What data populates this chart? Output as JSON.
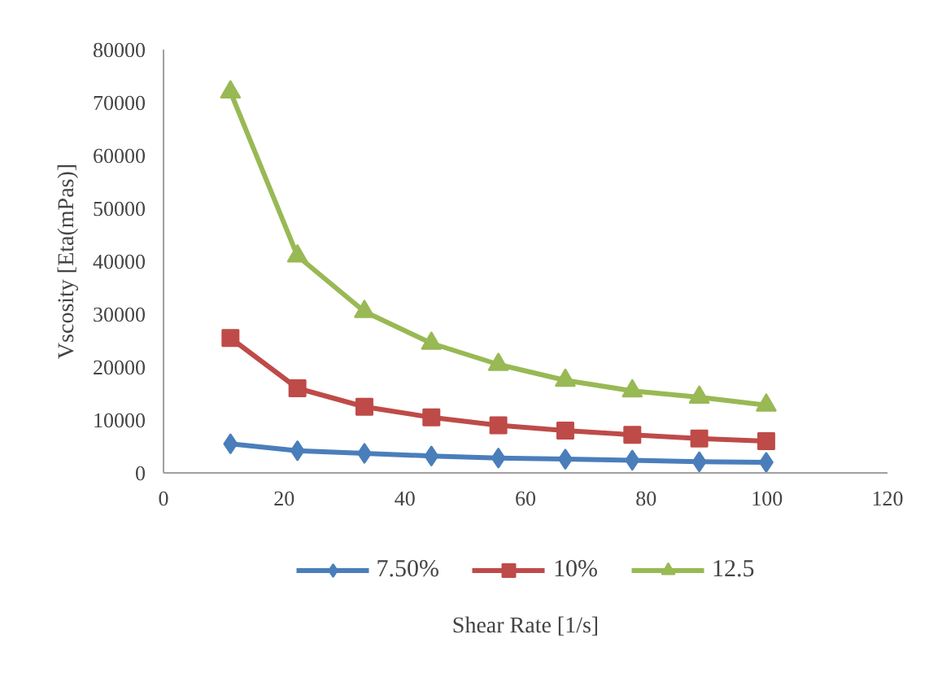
{
  "chart_data": {
    "type": "line",
    "xlabel": "Shear Rate [1/s]",
    "ylabel": "Vscosity [Eta(mPas)]",
    "x": [
      11.1,
      22.2,
      33.3,
      44.4,
      55.5,
      66.6,
      77.7,
      88.8,
      99.9
    ],
    "series": [
      {
        "name": "7.50%",
        "color": "#4a7ebb",
        "marker": "diamond",
        "values": [
          5500,
          4200,
          3700,
          3200,
          2800,
          2600,
          2400,
          2100,
          2000
        ]
      },
      {
        "name": "10%",
        "color": "#be4b48",
        "marker": "square",
        "values": [
          25500,
          16000,
          12500,
          10500,
          9000,
          8000,
          7200,
          6500,
          6000
        ]
      },
      {
        "name": "12.5",
        "color": "#98b954",
        "marker": "triangle",
        "values": [
          72000,
          41000,
          30500,
          24500,
          20500,
          17500,
          15500,
          14300,
          12800
        ]
      }
    ],
    "xlim": [
      0,
      120
    ],
    "xticks": [
      0,
      20,
      40,
      60,
      80,
      100,
      120
    ],
    "ylim": [
      0,
      80000
    ],
    "yticks": [
      0,
      10000,
      20000,
      30000,
      40000,
      50000,
      60000,
      70000,
      80000
    ],
    "grid": false,
    "legend": "bottom",
    "line_style": "solid"
  }
}
